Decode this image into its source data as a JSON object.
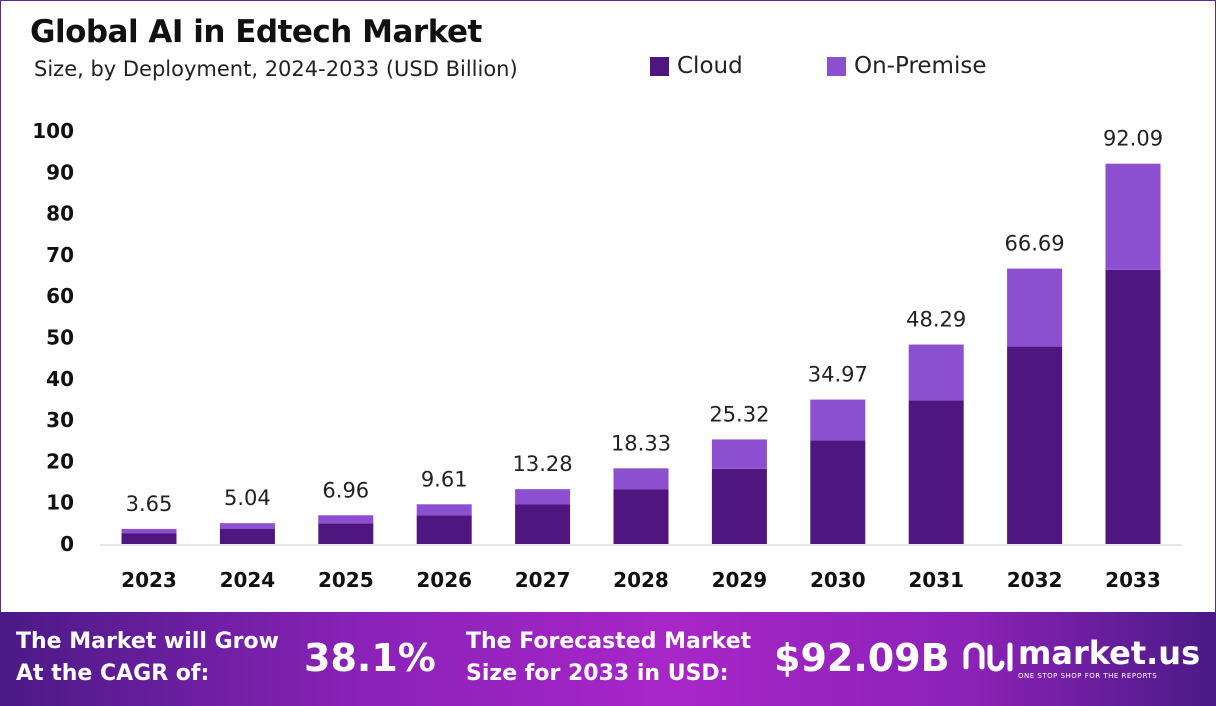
{
  "chart_data": {
    "type": "bar",
    "stacked": true,
    "title": "Global AI in Edtech Market",
    "subtitle": "Size, by Deployment, 2024-2033 (USD Billion)",
    "categories": [
      "2023",
      "2024",
      "2025",
      "2026",
      "2027",
      "2028",
      "2029",
      "2030",
      "2031",
      "2032",
      "2033"
    ],
    "series": [
      {
        "name": "Cloud",
        "color": "#4f1680",
        "values": [
          2.63,
          3.63,
          5.01,
          6.92,
          9.56,
          13.2,
          18.2,
          25.1,
          34.8,
          47.8,
          66.4
        ]
      },
      {
        "name": "On-Premise",
        "color": "#8b4fcf",
        "values": [
          1.02,
          1.41,
          1.95,
          2.69,
          3.72,
          5.13,
          7.12,
          9.87,
          13.49,
          18.89,
          25.69
        ]
      }
    ],
    "totals": [
      "3.65",
      "5.04",
      "6.96",
      "9.61",
      "13.28",
      "18.33",
      "25.32",
      "34.97",
      "48.29",
      "66.69",
      "92.09"
    ],
    "ylim": [
      0,
      100
    ],
    "yticks": [
      "0",
      "10",
      "20",
      "30",
      "40",
      "50",
      "60",
      "70",
      "80",
      "90",
      "100"
    ],
    "grid": false,
    "legend_position": "top-right"
  },
  "footer": {
    "cagr_label_1": "The Market will Grow",
    "cagr_label_2": "At the CAGR of:",
    "cagr_value": "38.1%",
    "forecast_label_1": "The Forecasted Market",
    "forecast_label_2": "Size for 2033 in USD:",
    "forecast_value": "$92.09B",
    "logo_name": "market.us",
    "logo_tagline": "ONE STOP SHOP FOR THE REPORTS"
  }
}
